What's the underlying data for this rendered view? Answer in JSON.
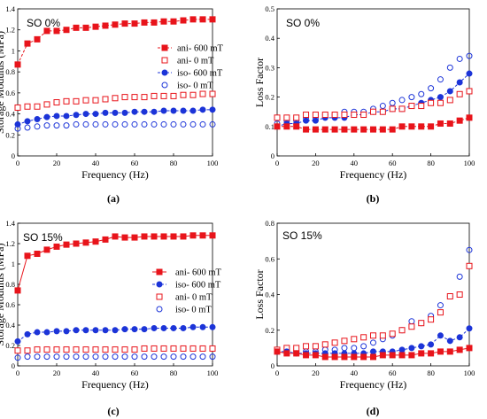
{
  "chart_data": [
    {
      "type": "scatter",
      "panel": "a",
      "caption": "(a)",
      "title": "SO 0%",
      "xlabel": "Frequency (Hz)",
      "ylabel": "Storage Modulus (MPa)",
      "xlim": [
        0,
        100
      ],
      "ylim": [
        0,
        1.4
      ],
      "xticks": [
        "0",
        "20",
        "40",
        "60",
        "80",
        "100"
      ],
      "yticks": [
        "0",
        "0.2",
        "0.4",
        "0.6",
        "0.8",
        "1",
        "1.2",
        "1.4"
      ],
      "legend_position": "right",
      "series": [
        {
          "name": "ani- 600 mT",
          "color": "#e8141b",
          "marker": "square-filled",
          "line": "dashed",
          "x": [
            0,
            5,
            10,
            15,
            20,
            25,
            30,
            35,
            40,
            45,
            50,
            55,
            60,
            65,
            70,
            75,
            80,
            85,
            90,
            95,
            100
          ],
          "y": [
            0.87,
            1.07,
            1.11,
            1.19,
            1.19,
            1.2,
            1.22,
            1.22,
            1.23,
            1.24,
            1.25,
            1.26,
            1.26,
            1.27,
            1.27,
            1.28,
            1.28,
            1.29,
            1.3,
            1.3,
            1.3
          ]
        },
        {
          "name": "ani- 0 mT",
          "color": "#e8141b",
          "marker": "square-open",
          "line": "none",
          "x": [
            0,
            5,
            10,
            15,
            20,
            25,
            30,
            35,
            40,
            45,
            50,
            55,
            60,
            65,
            70,
            75,
            80,
            85,
            90,
            95,
            100
          ],
          "y": [
            0.46,
            0.47,
            0.47,
            0.49,
            0.51,
            0.52,
            0.52,
            0.53,
            0.53,
            0.54,
            0.55,
            0.56,
            0.56,
            0.56,
            0.57,
            0.57,
            0.57,
            0.58,
            0.58,
            0.59,
            0.59
          ]
        },
        {
          "name": "iso- 600 mT",
          "color": "#1c34d8",
          "marker": "circle-filled",
          "line": "dashed",
          "x": [
            0,
            5,
            10,
            15,
            20,
            25,
            30,
            35,
            40,
            45,
            50,
            55,
            60,
            65,
            70,
            75,
            80,
            85,
            90,
            95,
            100
          ],
          "y": [
            0.3,
            0.33,
            0.35,
            0.37,
            0.38,
            0.38,
            0.39,
            0.4,
            0.4,
            0.41,
            0.41,
            0.41,
            0.42,
            0.42,
            0.42,
            0.43,
            0.43,
            0.43,
            0.43,
            0.44,
            0.44
          ]
        },
        {
          "name": "iso- 0 mT",
          "color": "#1c34d8",
          "marker": "circle-open",
          "line": "none",
          "x": [
            0,
            5,
            10,
            15,
            20,
            25,
            30,
            35,
            40,
            45,
            50,
            55,
            60,
            65,
            70,
            75,
            80,
            85,
            90,
            95,
            100
          ],
          "y": [
            0.26,
            0.27,
            0.28,
            0.29,
            0.29,
            0.29,
            0.3,
            0.3,
            0.3,
            0.3,
            0.3,
            0.3,
            0.3,
            0.3,
            0.3,
            0.3,
            0.3,
            0.3,
            0.3,
            0.3,
            0.3
          ]
        }
      ]
    },
    {
      "type": "scatter",
      "panel": "b",
      "caption": "(b)",
      "title": "SO 0%",
      "xlabel": "Frequency (Hz)",
      "ylabel": "Loss Factor",
      "xlim": [
        0,
        100
      ],
      "ylim": [
        0,
        0.5
      ],
      "xticks": [
        "0",
        "20",
        "40",
        "60",
        "80",
        "100"
      ],
      "yticks": [
        "0",
        "0.1",
        "0.2",
        "0.3",
        "0.4",
        "0.5"
      ],
      "legend_position": "top-right",
      "series": [
        {
          "name": "iso- 0 mT",
          "color": "#1c34d8",
          "marker": "circle-open",
          "line": "none",
          "x": [
            0,
            5,
            10,
            15,
            20,
            25,
            30,
            35,
            40,
            45,
            50,
            55,
            60,
            65,
            70,
            75,
            80,
            85,
            90,
            95,
            100
          ],
          "y": [
            0.11,
            0.12,
            0.12,
            0.13,
            0.13,
            0.14,
            0.14,
            0.15,
            0.15,
            0.15,
            0.16,
            0.17,
            0.18,
            0.19,
            0.2,
            0.21,
            0.23,
            0.26,
            0.3,
            0.33,
            0.34
          ]
        },
        {
          "name": "iso- 600 mT",
          "color": "#1c34d8",
          "marker": "circle-filled",
          "line": "dashed",
          "x": [
            0,
            5,
            10,
            15,
            20,
            25,
            30,
            35,
            40,
            45,
            50,
            55,
            60,
            65,
            70,
            75,
            80,
            85,
            90,
            95,
            100
          ],
          "y": [
            0.1,
            0.11,
            0.11,
            0.12,
            0.12,
            0.13,
            0.13,
            0.13,
            0.14,
            0.14,
            0.15,
            0.15,
            0.16,
            0.16,
            0.17,
            0.18,
            0.19,
            0.2,
            0.22,
            0.25,
            0.28
          ]
        },
        {
          "name": "ani- 0 mT",
          "color": "#e8141b",
          "marker": "square-open",
          "line": "none",
          "x": [
            0,
            5,
            10,
            15,
            20,
            25,
            30,
            35,
            40,
            45,
            50,
            55,
            60,
            65,
            70,
            75,
            80,
            85,
            90,
            95,
            100
          ],
          "y": [
            0.13,
            0.13,
            0.13,
            0.14,
            0.14,
            0.14,
            0.14,
            0.14,
            0.14,
            0.14,
            0.15,
            0.15,
            0.16,
            0.16,
            0.17,
            0.17,
            0.18,
            0.18,
            0.19,
            0.21,
            0.22
          ]
        },
        {
          "name": "ani- 600 mT",
          "color": "#e8141b",
          "marker": "square-filled",
          "line": "dashed",
          "x": [
            0,
            5,
            10,
            15,
            20,
            25,
            30,
            35,
            40,
            45,
            50,
            55,
            60,
            65,
            70,
            75,
            80,
            85,
            90,
            95,
            100
          ],
          "y": [
            0.1,
            0.1,
            0.1,
            0.09,
            0.09,
            0.09,
            0.09,
            0.09,
            0.09,
            0.09,
            0.09,
            0.09,
            0.09,
            0.1,
            0.1,
            0.1,
            0.1,
            0.11,
            0.11,
            0.12,
            0.13
          ]
        }
      ]
    },
    {
      "type": "scatter",
      "panel": "c",
      "caption": "(c)",
      "title": "SO 15%",
      "xlabel": "Frequency (Hz)",
      "ylabel": "Storage Modulus (MPa)",
      "xlim": [
        0,
        100
      ],
      "ylim": [
        0,
        1.4
      ],
      "xticks": [
        "0",
        "20",
        "40",
        "60",
        "80",
        "100"
      ],
      "yticks": [
        "0",
        "0.2",
        "0.4",
        "0.6",
        "0.8",
        "1",
        "1.2",
        "1.4"
      ],
      "legend_position": "right",
      "series": [
        {
          "name": "ani- 600 mT",
          "color": "#e8141b",
          "marker": "square-filled",
          "line": "solid",
          "x": [
            0,
            5,
            10,
            15,
            20,
            25,
            30,
            35,
            40,
            45,
            50,
            55,
            60,
            65,
            70,
            75,
            80,
            85,
            90,
            95,
            100
          ],
          "y": [
            0.74,
            1.08,
            1.1,
            1.14,
            1.17,
            1.19,
            1.2,
            1.21,
            1.22,
            1.24,
            1.27,
            1.26,
            1.26,
            1.27,
            1.27,
            1.27,
            1.27,
            1.27,
            1.28,
            1.28,
            1.28
          ]
        },
        {
          "name": "iso- 600 mT",
          "color": "#1c34d8",
          "marker": "circle-filled",
          "line": "dashed",
          "x": [
            0,
            5,
            10,
            15,
            20,
            25,
            30,
            35,
            40,
            45,
            50,
            55,
            60,
            65,
            70,
            75,
            80,
            85,
            90,
            95,
            100
          ],
          "y": [
            0.24,
            0.31,
            0.33,
            0.33,
            0.34,
            0.34,
            0.35,
            0.35,
            0.35,
            0.35,
            0.35,
            0.36,
            0.36,
            0.36,
            0.37,
            0.37,
            0.37,
            0.37,
            0.38,
            0.38,
            0.38
          ]
        },
        {
          "name": "ani- 0 mT",
          "color": "#e8141b",
          "marker": "square-open",
          "line": "none",
          "x": [
            0,
            5,
            10,
            15,
            20,
            25,
            30,
            35,
            40,
            45,
            50,
            55,
            60,
            65,
            70,
            75,
            80,
            85,
            90,
            95,
            100
          ],
          "y": [
            0.15,
            0.15,
            0.16,
            0.16,
            0.16,
            0.16,
            0.16,
            0.16,
            0.16,
            0.16,
            0.16,
            0.16,
            0.16,
            0.17,
            0.17,
            0.17,
            0.17,
            0.17,
            0.17,
            0.17,
            0.17
          ]
        },
        {
          "name": "iso- 0 mT",
          "color": "#1c34d8",
          "marker": "circle-open",
          "line": "none",
          "x": [
            0,
            5,
            10,
            15,
            20,
            25,
            30,
            35,
            40,
            45,
            50,
            55,
            60,
            65,
            70,
            75,
            80,
            85,
            90,
            95,
            100
          ],
          "y": [
            0.08,
            0.09,
            0.09,
            0.09,
            0.09,
            0.09,
            0.09,
            0.09,
            0.09,
            0.09,
            0.09,
            0.09,
            0.09,
            0.09,
            0.09,
            0.09,
            0.09,
            0.09,
            0.09,
            0.09,
            0.09
          ]
        }
      ]
    },
    {
      "type": "scatter",
      "panel": "d",
      "caption": "(d)",
      "title": "SO 15%",
      "xlabel": "Frequency (Hz)",
      "ylabel": "Loss Factor",
      "xlim": [
        0,
        100
      ],
      "ylim": [
        0,
        0.8
      ],
      "xticks": [
        "0",
        "20",
        "40",
        "60",
        "80",
        "100"
      ],
      "yticks": [
        "0",
        "0.2",
        "0.4",
        "0.6",
        "0.8"
      ],
      "legend_position": "left",
      "series": [
        {
          "name": "iso- 0 mT",
          "color": "#1c34d8",
          "marker": "circle-open",
          "line": "none",
          "x": [
            0,
            5,
            10,
            15,
            20,
            25,
            30,
            35,
            40,
            45,
            50,
            55,
            60,
            65,
            70,
            75,
            80,
            85,
            90,
            95,
            100
          ],
          "y": [
            0.08,
            0.08,
            0.08,
            0.08,
            0.08,
            0.09,
            0.09,
            0.1,
            0.1,
            0.11,
            0.13,
            0.15,
            0.17,
            0.2,
            0.25,
            0.24,
            0.28,
            0.34,
            0.39,
            0.5,
            0.65
          ]
        },
        {
          "name": "ani- 0 mT",
          "color": "#e8141b",
          "marker": "square-open",
          "line": "none",
          "x": [
            0,
            5,
            10,
            15,
            20,
            25,
            30,
            35,
            40,
            45,
            50,
            55,
            60,
            65,
            70,
            75,
            80,
            85,
            90,
            95,
            100
          ],
          "y": [
            0.09,
            0.1,
            0.1,
            0.11,
            0.11,
            0.12,
            0.13,
            0.14,
            0.15,
            0.16,
            0.17,
            0.17,
            0.18,
            0.2,
            0.22,
            0.24,
            0.26,
            0.3,
            0.39,
            0.4,
            0.56
          ]
        },
        {
          "name": "iso- 600 mT",
          "color": "#1c34d8",
          "marker": "circle-filled",
          "line": "dashed",
          "x": [
            0,
            5,
            10,
            15,
            20,
            25,
            30,
            35,
            40,
            45,
            50,
            55,
            60,
            65,
            70,
            75,
            80,
            85,
            90,
            95,
            100
          ],
          "y": [
            0.08,
            0.08,
            0.07,
            0.07,
            0.07,
            0.07,
            0.07,
            0.07,
            0.07,
            0.07,
            0.08,
            0.08,
            0.08,
            0.09,
            0.1,
            0.11,
            0.12,
            0.17,
            0.14,
            0.16,
            0.21
          ]
        },
        {
          "name": "ani- 600 mT",
          "color": "#e8141b",
          "marker": "square-filled",
          "line": "solid",
          "x": [
            0,
            5,
            10,
            15,
            20,
            25,
            30,
            35,
            40,
            45,
            50,
            55,
            60,
            65,
            70,
            75,
            80,
            85,
            90,
            95,
            100
          ],
          "y": [
            0.08,
            0.07,
            0.07,
            0.06,
            0.06,
            0.05,
            0.05,
            0.05,
            0.05,
            0.05,
            0.05,
            0.06,
            0.06,
            0.06,
            0.06,
            0.07,
            0.07,
            0.08,
            0.08,
            0.09,
            0.1
          ]
        }
      ]
    }
  ]
}
